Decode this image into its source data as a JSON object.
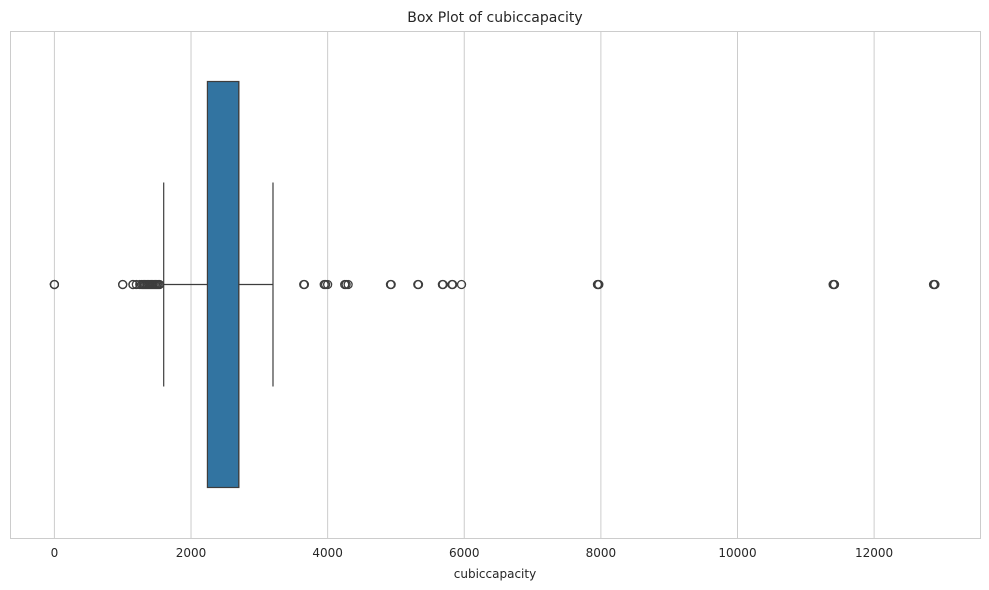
{
  "chart_data": {
    "type": "box",
    "orientation": "horizontal",
    "title": "Box Plot of cubiccapacity",
    "xlabel": "cubiccapacity",
    "ylabel": "",
    "xlim": [
      -650,
      13550
    ],
    "x_ticks": [
      0,
      2000,
      4000,
      6000,
      8000,
      10000,
      12000
    ],
    "x_tick_labels": [
      "0",
      "2000",
      "4000",
      "6000",
      "8000",
      "10000",
      "12000"
    ],
    "grid": "x-only",
    "box": {
      "q1": 2240,
      "median": 2700,
      "q3": 2700,
      "whisker_low": 1600,
      "whisker_high": 3200,
      "color": "#3274a1"
    },
    "outliers": [
      0,
      0,
      0,
      1000,
      1000,
      1150,
      1150,
      1200,
      1250,
      1280,
      1300,
      1320,
      1340,
      1360,
      1380,
      1400,
      1420,
      1440,
      1460,
      1480,
      1500,
      1520,
      1540,
      3650,
      3660,
      3950,
      3970,
      4000,
      4250,
      4270,
      4300,
      4920,
      4930,
      5320,
      5330,
      5680,
      5690,
      5820,
      5830,
      5960,
      7950,
      7960,
      7970,
      11400,
      11410,
      11420,
      12870,
      12880,
      12890
    ]
  }
}
